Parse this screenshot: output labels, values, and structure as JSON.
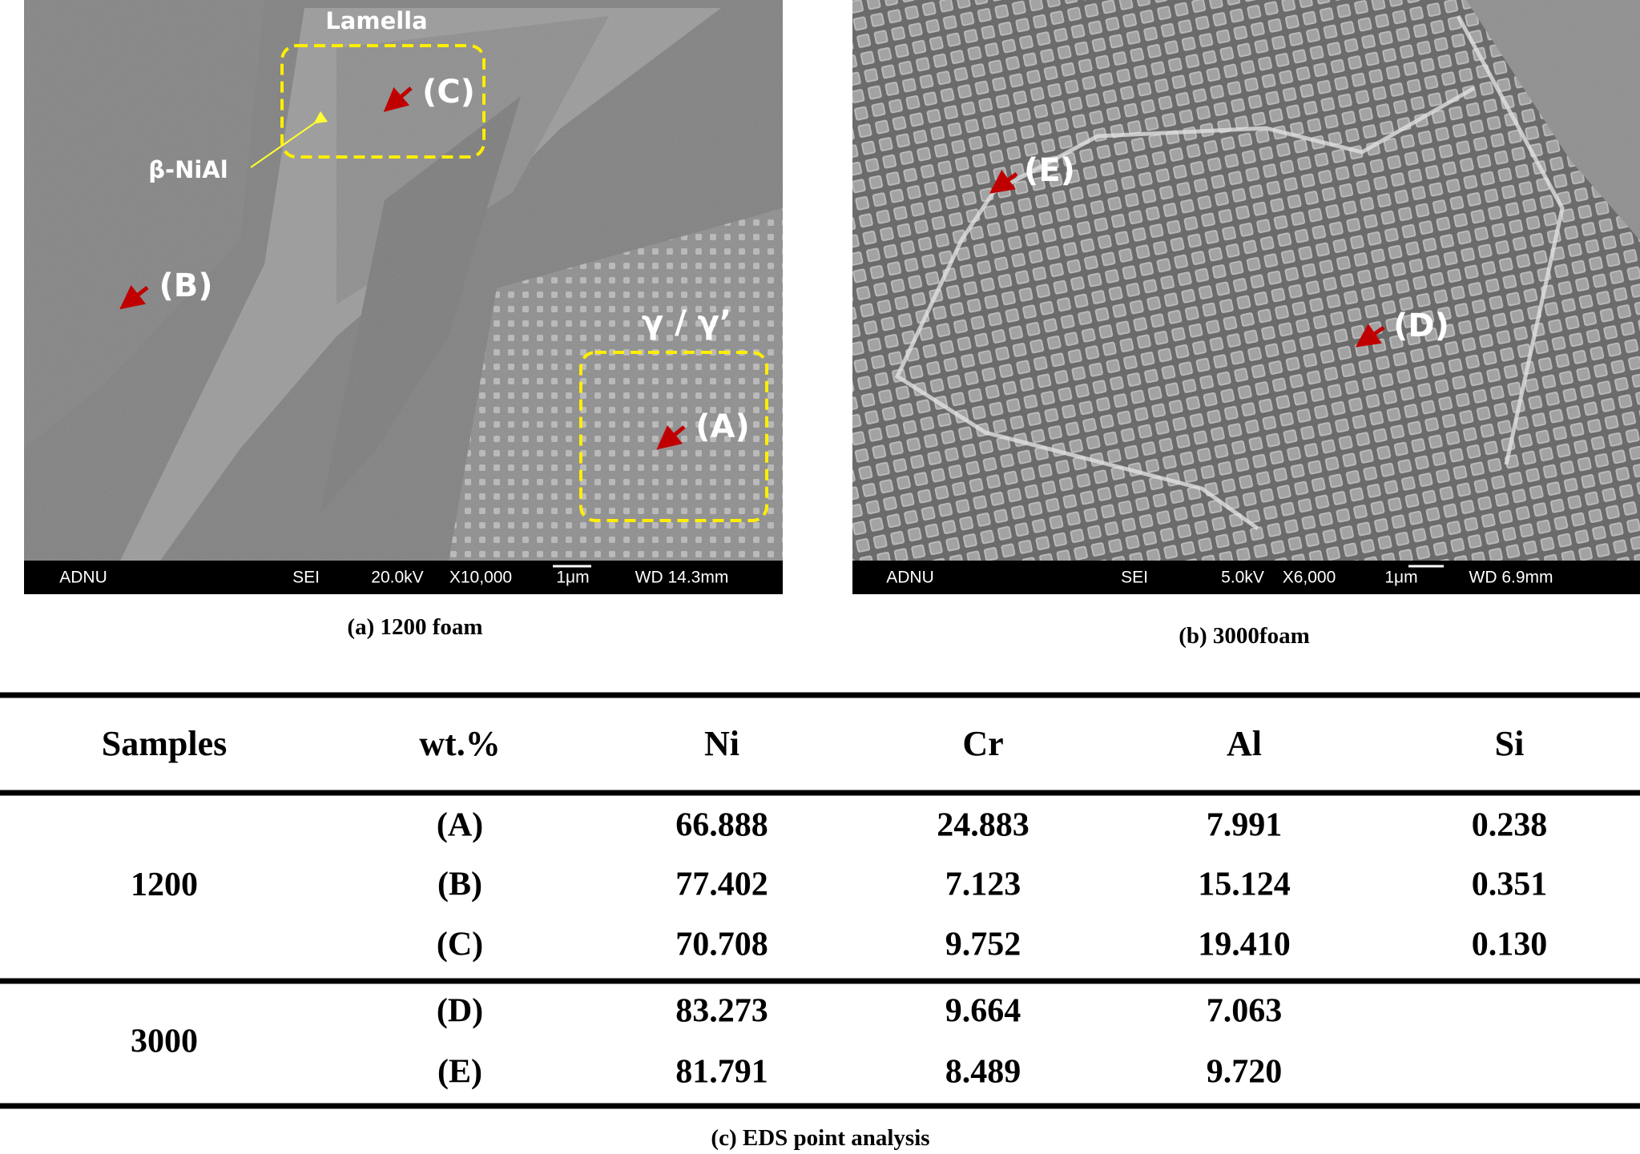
{
  "panels": [
    {
      "annotations": [
        "Lamella",
        "(C)",
        "β-NiAl",
        "(B)",
        "γ / γ’",
        "(A)"
      ],
      "info_bar": [
        "ADNU",
        "SEI",
        "20.0kV",
        "X10,000",
        "1μm",
        "WD 14.3mm"
      ],
      "caption": "(a) 1200 foam"
    },
    {
      "annotations": [
        "(E)",
        "(D)"
      ],
      "info_bar": [
        "ADNU",
        "SEI",
        "5.0kV",
        "X6,000",
        "1μm",
        "WD 6.9mm"
      ],
      "caption": "(b) 3000foam"
    }
  ],
  "table": {
    "header": [
      "Samples",
      "wt.%",
      "Ni",
      "Cr",
      "Al",
      "Si"
    ],
    "groups": [
      {
        "sample": "1200",
        "rows": [
          [
            "(A)",
            "66.888",
            "24.883",
            "7.991",
            "0.238"
          ],
          [
            "(B)",
            "77.402",
            "7.123",
            "15.124",
            "0.351"
          ],
          [
            "(C)",
            "70.708",
            "9.752",
            "19.410",
            "0.130"
          ]
        ]
      },
      {
        "sample": "3000",
        "rows": [
          [
            "(D)",
            "83.273",
            "9.664",
            "7.063"
          ],
          [
            "(E)",
            "81.791",
            "8.489",
            "9.720"
          ]
        ]
      }
    ],
    "caption": "(c) EDS point analysis"
  }
}
